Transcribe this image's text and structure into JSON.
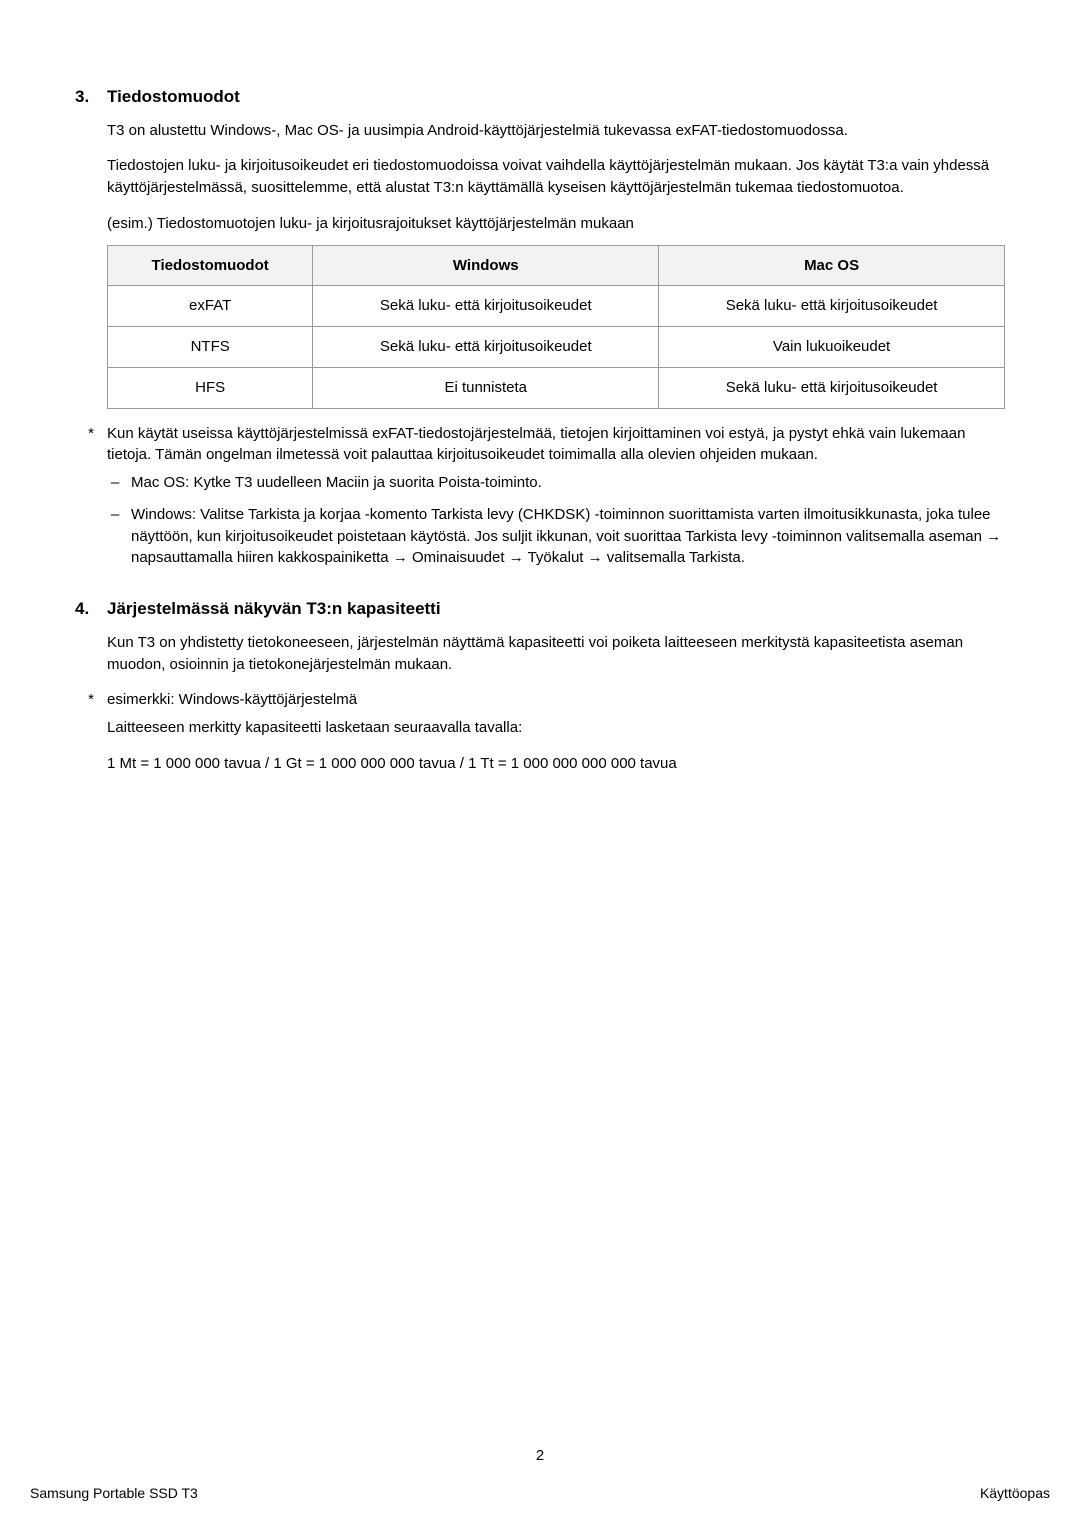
{
  "section3": {
    "number": "3.",
    "title": "Tiedostomuodot",
    "para1": "T3 on alustettu Windows-, Mac OS- ja uusimpia Android-käyttöjärjestelmiä tukevassa exFAT-tiedostomuodossa.",
    "para2": "Tiedostojen luku- ja kirjoitusoikeudet eri tiedostomuodoissa voivat vaihdella käyttöjärjestelmän mukaan. Jos käytät T3:a vain yhdessä käyttöjärjestelmässä, suosittelemme, että alustat T3:n käyttämällä kyseisen käyttöjärjestelmän tukemaa tiedostomuotoa.",
    "caption": "(esim.) Tiedostomuotojen luku- ja kirjoitusrajoitukset käyttöjärjestelmän mukaan",
    "table": {
      "columns": [
        "Tiedostomuodot",
        "Windows",
        "Mac OS"
      ],
      "rows": [
        [
          "exFAT",
          "Sekä luku- että kirjoitusoikeudet",
          "Sekä luku- että kirjoitusoikeudet"
        ],
        [
          "NTFS",
          "Sekä luku- että kirjoitusoikeudet",
          "Vain lukuoikeudet"
        ],
        [
          "HFS",
          "Ei tunnisteta",
          "Sekä luku- että kirjoitusoikeudet"
        ]
      ],
      "header_bg": "#f2f2f2",
      "border_color": "#9a9a9a"
    },
    "star_note": "Kun käytät useissa käyttöjärjestelmissä exFAT-tiedostojärjestelmää, tietojen kirjoittaminen voi estyä, ja pystyt ehkä vain lukemaan tietoja. Tämän ongelman ilmetessä voit palauttaa kirjoitusoikeudet toimimalla alla olevien ohjeiden mukaan.",
    "dash_mac": "Mac OS: Kytke T3 uudelleen Maciin ja suorita Poista-toiminto.",
    "dash_win": "Windows: Valitse Tarkista ja korjaa -komento Tarkista levy (CHKDSK) -toiminnon suorittamista varten ilmoitusikkunasta, joka tulee näyttöön, kun kirjoitusoikeudet poistetaan käytöstä. Jos suljit ikkunan, voit suorittaa Tarkista levy -toiminnon valitsemalla aseman → napsauttamalla hiiren kakkospainiketta → Ominaisuudet → Työkalut → valitsemalla Tarkista."
  },
  "section4": {
    "number": "4.",
    "title": "Järjestelmässä näkyvän T3:n kapasiteetti",
    "para1": "Kun T3 on yhdistetty tietokoneeseen, järjestelmän näyttämä kapasiteetti voi poiketa laitteeseen merkitystä kapasiteetista aseman muodon, osioinnin ja tietokonejärjestelmän mukaan.",
    "star_note": "esimerkki: Windows-käyttöjärjestelmä",
    "calc_intro": "Laitteeseen merkitty kapasiteetti lasketaan seuraavalla tavalla:",
    "calc_line": "1 Mt = 1 000 000 tavua / 1 Gt = 1 000 000 000 tavua / 1 Tt = 1 000 000 000 000 tavua"
  },
  "markers": {
    "star": "*",
    "dash": "–"
  },
  "page_number": "2",
  "footer_left": "Samsung Portable SSD T3",
  "footer_right": "Käyttöopas"
}
